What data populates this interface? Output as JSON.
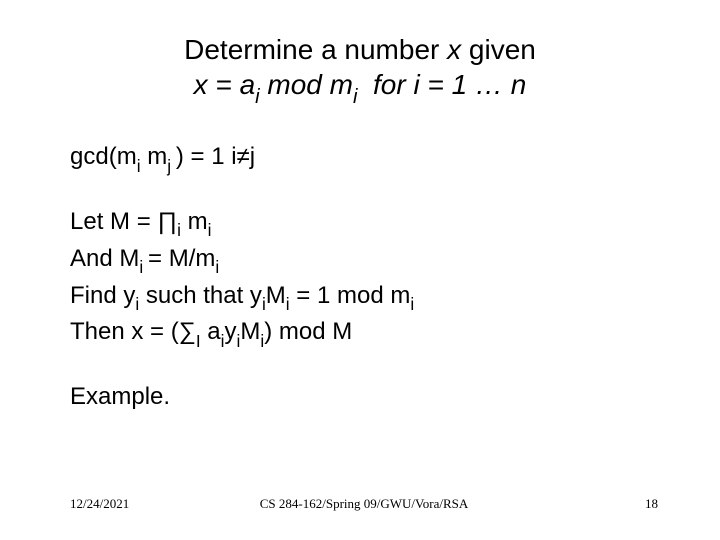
{
  "title_line1_pre": "Determine a number ",
  "title_line1_x": "x",
  "title_line1_post": " given",
  "title_line2": "x = a<i class=\"sub\">i</i> mod m<i class=\"sub\">i</i>&nbsp; for i = 1 … n",
  "gcd_line": "gcd(m<span class=\"sub\">i</span> m<span class=\"sub\">j </span>) = 1 i≠j",
  "let_line": "Let M = ∏<span class=\"sub\">i</span> m<span class=\"sub\">i</span>",
  "and_line": "And M<span class=\"sub\">i </span>= M/m<span class=\"sub\">i</span>",
  "find_line": "Find y<span class=\"sub\">i</span> such that y<span class=\"sub\">i</span>M<span class=\"sub\">i</span> = 1 mod m<span class=\"sub\">i</span>",
  "then_line": "Then x = (∑<span class=\"sub\">I</span> a<span class=\"sub\">i</span>y<span class=\"sub\">i</span>M<span class=\"sub\">i</span>) mod M",
  "example": "Example.",
  "footer_date": "12/24/2021",
  "footer_mid": "CS 284-162/Spring 09/GWU/Vora/RSA",
  "footer_page": "18"
}
